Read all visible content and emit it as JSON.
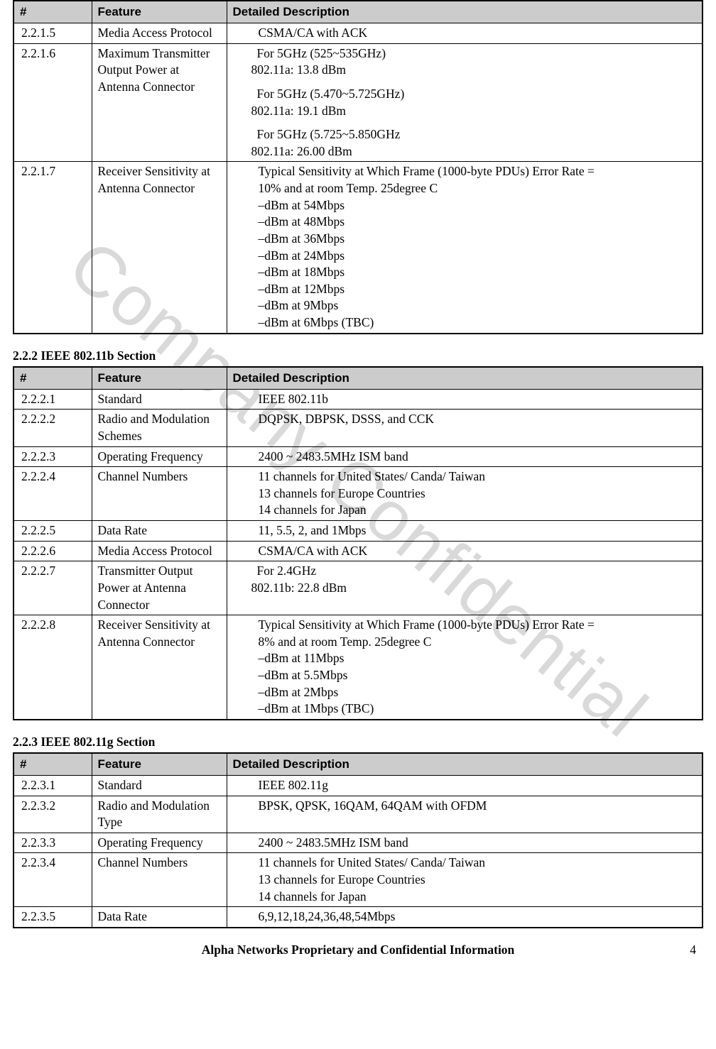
{
  "colors": {
    "header_bg": "#cccccc",
    "border": "#000000",
    "text": "#000000",
    "watermark": "#d9d9d9",
    "page_bg": "#ffffff"
  },
  "fonts": {
    "body_family": "Times New Roman",
    "header_family": "Arial",
    "body_size_pt": 13,
    "header_size_pt": 13
  },
  "watermark_text": "Company Confidential",
  "columns": {
    "num": "#",
    "feature": "Feature",
    "desc": "Detailed Description"
  },
  "table1": {
    "rows": [
      {
        "num": "2.2.1.5",
        "feature": "Media Access Protocol",
        "desc_lines": [
          "CSMA/CA with ACK"
        ]
      },
      {
        "num": "2.2.1.6",
        "feature": "Maximum Transmitter Output Power at Antenna Connector",
        "desc_blocks": [
          {
            "l1": "For 5GHz (525~535GHz)",
            "l2": "802.11a: 13.8 dBm"
          },
          {
            "l1": "For 5GHz (5.470~5.725GHz)",
            "l2": "802.11a: 19.1 dBm"
          },
          {
            "l1": "For 5GHz (5.725~5.850GHz",
            "l2": "802.11a: 26.00 dBm"
          }
        ]
      },
      {
        "num": "2.2.1.7",
        "feature": "Receiver Sensitivity at Antenna Connector",
        "desc_lines": [
          "Typical Sensitivity at Which Frame (1000-byte PDUs) Error Rate =",
          "10% and at room Temp. 25degree C",
          "–dBm at 54Mbps",
          "–dBm at 48Mbps",
          "–dBm at 36Mbps",
          "–dBm at 24Mbps",
          "–dBm at 18Mbps",
          "–dBm at 12Mbps",
          "–dBm at 9Mbps",
          "–dBm at 6Mbps (TBC)"
        ]
      }
    ]
  },
  "section2_title": "2.2.2 IEEE 802.11b Section",
  "table2": {
    "rows": [
      {
        "num": "2.2.2.1",
        "feature": "Standard",
        "desc_lines": [
          "IEEE 802.11b"
        ]
      },
      {
        "num": "2.2.2.2",
        "feature": "Radio and Modulation Schemes",
        "desc_lines": [
          "DQPSK, DBPSK, DSSS, and CCK"
        ]
      },
      {
        "num": "2.2.2.3",
        "feature": "Operating Frequency",
        "desc_lines": [
          "2400 ~ 2483.5MHz ISM band"
        ]
      },
      {
        "num": "2.2.2.4",
        "feature": "Channel Numbers",
        "desc_lines": [
          "11 channels for United States/ Canda/ Taiwan",
          "13 channels for Europe Countries",
          "14 channels for Japan"
        ]
      },
      {
        "num": "2.2.2.5",
        "feature": "Data Rate",
        "desc_lines": [
          "11, 5.5, 2, and 1Mbps"
        ]
      },
      {
        "num": "2.2.2.6",
        "feature": "Media Access Protocol",
        "desc_lines": [
          "CSMA/CA with ACK"
        ]
      },
      {
        "num": "2.2.2.7",
        "feature": "Transmitter Output Power at Antenna Connector",
        "desc_blocks": [
          {
            "l1": "For 2.4GHz",
            "l2": "802.11b: 22.8 dBm"
          }
        ]
      },
      {
        "num": "2.2.2.8",
        "feature": "Receiver Sensitivity at Antenna Connector",
        "desc_lines": [
          "Typical Sensitivity at Which Frame (1000-byte PDUs) Error Rate =",
          "8% and at room Temp. 25degree C",
          "–dBm at 11Mbps",
          "–dBm at 5.5Mbps",
          "–dBm at 2Mbps",
          "–dBm at 1Mbps (TBC)"
        ]
      }
    ]
  },
  "section3_title": "2.2.3 IEEE 802.11g Section",
  "table3": {
    "rows": [
      {
        "num": "2.2.3.1",
        "feature": "Standard",
        "desc_lines": [
          "IEEE 802.11g"
        ]
      },
      {
        "num": "2.2.3.2",
        "feature": "Radio and Modulation Type",
        "desc_lines": [
          "BPSK, QPSK, 16QAM, 64QAM with OFDM"
        ]
      },
      {
        "num": "2.2.3.3",
        "feature": "Operating Frequency",
        "desc_lines": [
          "2400 ~ 2483.5MHz ISM band"
        ]
      },
      {
        "num": "2.2.3.4",
        "feature": "Channel Numbers",
        "desc_lines": [
          "11 channels for United States/ Canda/ Taiwan",
          "13 channels for Europe Countries",
          "14 channels for Japan"
        ]
      },
      {
        "num": "2.2.3.5",
        "feature": "Data Rate",
        "desc_lines": [
          "6,9,12,18,24,36,48,54Mbps"
        ]
      }
    ]
  },
  "footer_text": "Alpha Networks Proprietary and Confidential Information",
  "page_number": "4"
}
